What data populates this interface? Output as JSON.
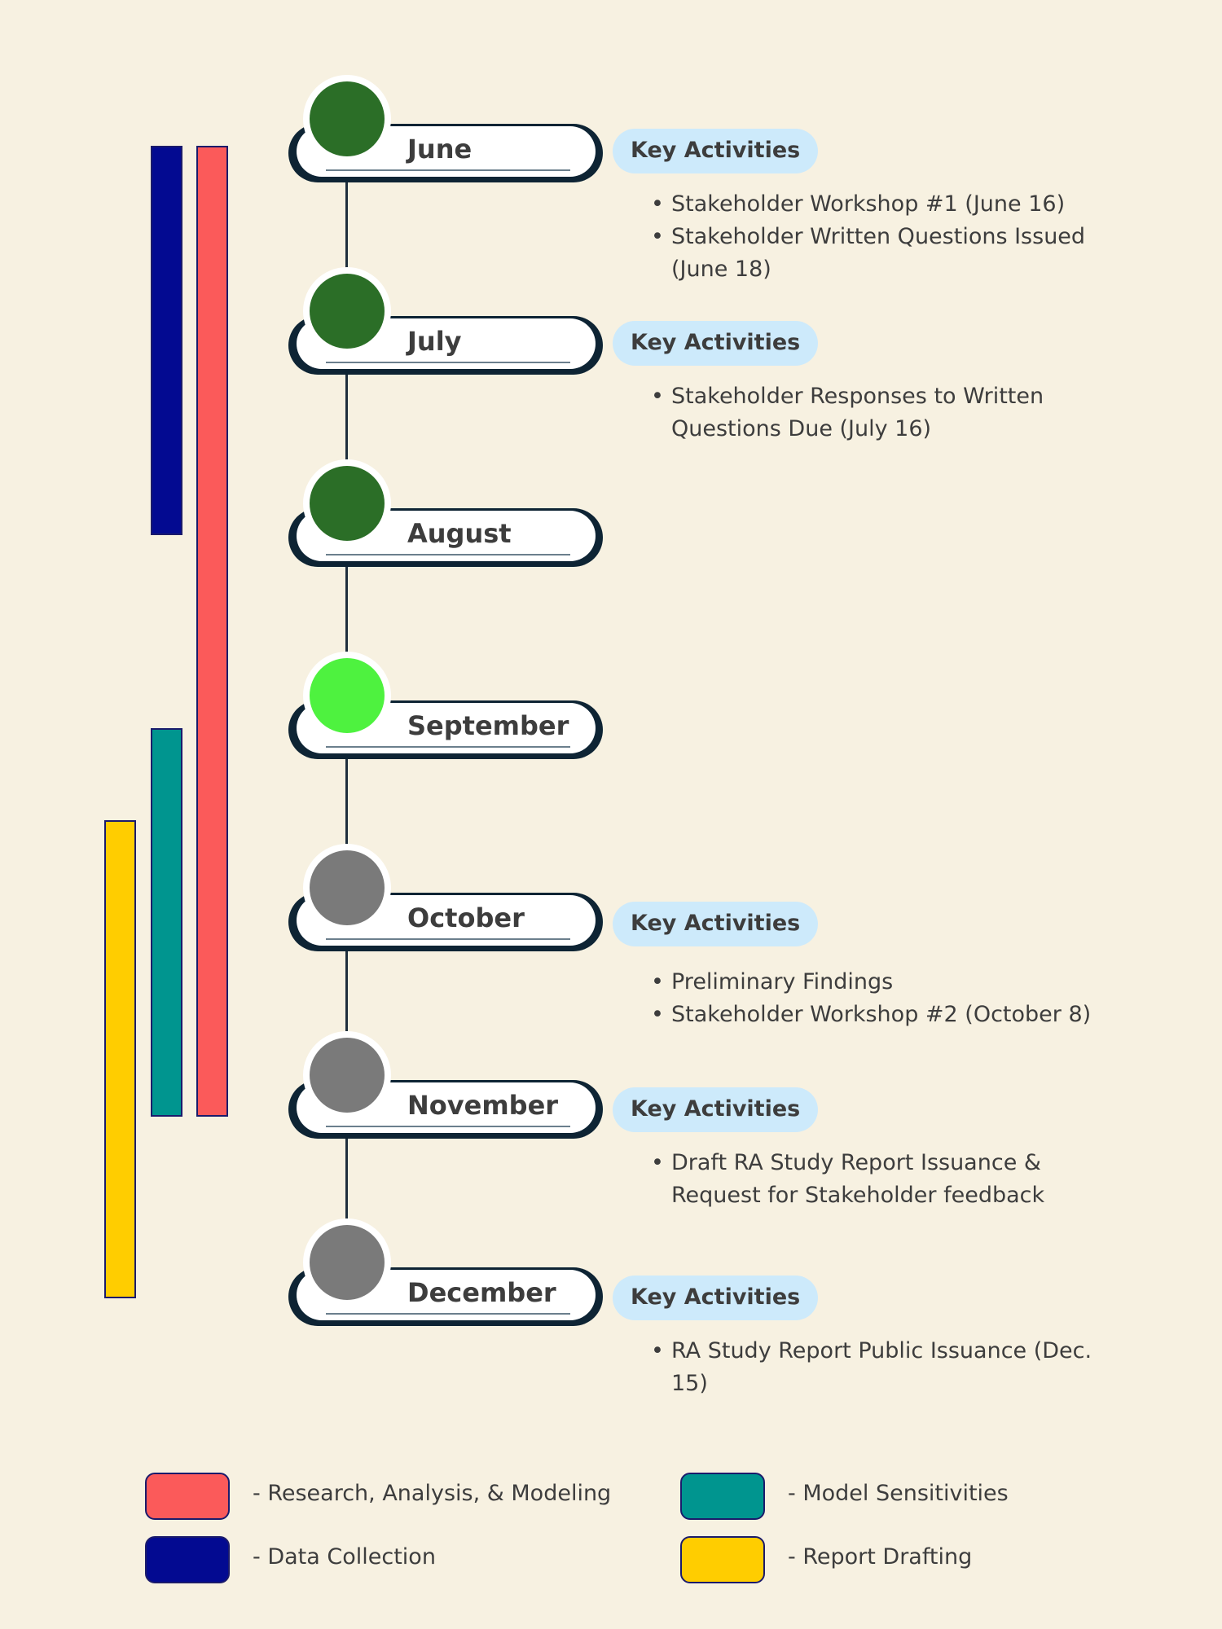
{
  "colors": {
    "background": "#f7f1e1",
    "complete": "#2b6e27",
    "current": "#4ef23f",
    "upcoming": "#7a7a7a",
    "research": "#fb5a5a",
    "data_collection": "#030a91",
    "model_sensitivities": "#00958f",
    "report_drafting": "#ffcd00",
    "key_activities_bg": "#cdeafb"
  },
  "months": [
    {
      "label": "June",
      "status": "complete"
    },
    {
      "label": "July",
      "status": "complete"
    },
    {
      "label": "August",
      "status": "complete"
    },
    {
      "label": "September",
      "status": "current"
    },
    {
      "label": "October",
      "status": "upcoming"
    },
    {
      "label": "November",
      "status": "upcoming"
    },
    {
      "label": "December",
      "status": "upcoming"
    }
  ],
  "activities": [
    {
      "month": "June",
      "title": "Key Activities",
      "items": [
        "Stakeholder Workshop #1 (June 16)",
        "Stakeholder Written Questions Issued (June 18)"
      ]
    },
    {
      "month": "July",
      "title": "Key Activities",
      "items": [
        "Stakeholder Responses to Written Questions Due (July 16)"
      ]
    },
    {
      "month": "October",
      "title": "Key Activities",
      "items": [
        "Preliminary Findings",
        "Stakeholder Workshop #2 (October 8)"
      ]
    },
    {
      "month": "November",
      "title": "Key Activities",
      "items": [
        "Draft RA Study Report Issuance & Request for Stakeholder feedback"
      ]
    },
    {
      "month": "December",
      "title": "Key Activities",
      "items": [
        "RA Study Report Public Issuance (Dec. 15)"
      ]
    }
  ],
  "phases": [
    {
      "name": "Research, Analysis, & Modeling",
      "color": "#fb5a5a",
      "start": "June",
      "end": "November"
    },
    {
      "name": "Data Collection",
      "color": "#030a91",
      "start": "June",
      "end": "August"
    },
    {
      "name": "Model Sensitivities",
      "color": "#00958f",
      "start": "September",
      "end": "November"
    },
    {
      "name": "Report Drafting",
      "color": "#ffcd00",
      "start": "October",
      "end": "December"
    }
  ],
  "legend": [
    {
      "label": "- Research, Analysis, & Modeling",
      "color": "#fb5a5a"
    },
    {
      "label": "- Model Sensitivities",
      "color": "#00958f"
    },
    {
      "label": "- Data Collection",
      "color": "#030a91"
    },
    {
      "label": "- Report Drafting",
      "color": "#ffcd00"
    }
  ]
}
